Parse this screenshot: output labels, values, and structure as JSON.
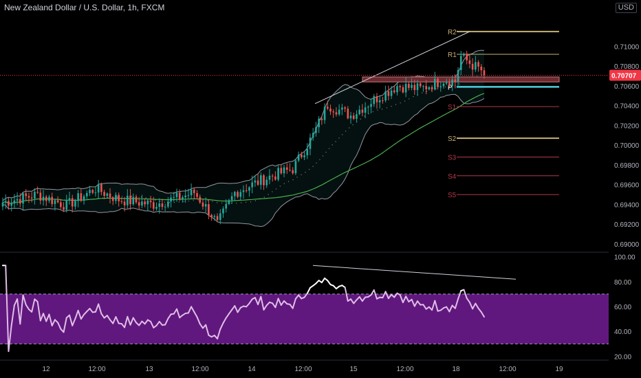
{
  "header": {
    "symbol_title": "New Zealand Dollar / U.S. Dollar, 1h, FXCM"
  },
  "currency_badge": "USD",
  "colors": {
    "background": "#000000",
    "bull": "#26a69a",
    "bear": "#ef5350",
    "bb": "#9598a1",
    "ma": "#4caf50",
    "rsi_line": "#e1bee7",
    "rsi_line_over": "#ffffff",
    "rsi_band": "#7b1fa2",
    "price_label": "#f23645",
    "pivot_p": "#4dd0e1",
    "pivot_r": "#c8b27a",
    "pivot_s": "#b23a4a"
  },
  "chart_data": {
    "type": "candlestick",
    "title": "New Zealand Dollar / U.S. Dollar, 1h, FXCM",
    "price_axis": {
      "range": [
        0.6893,
        0.7133
      ],
      "ticks": [
        "0.69000",
        "0.69200",
        "0.69400",
        "0.69600",
        "0.69800",
        "0.70000",
        "0.70200",
        "0.70400",
        "0.70600",
        "0.70800",
        "0.71000"
      ],
      "current_price_label": "0.70707",
      "current_price": 0.70707
    },
    "time_axis": {
      "labels": [
        "12",
        "12:00",
        "13",
        "12:00",
        "14",
        "12:00",
        "15",
        "12:00",
        "18",
        "12:00",
        "19"
      ]
    },
    "pivots": [
      {
        "name": "R2",
        "value": 0.7115
      },
      {
        "name": "R1",
        "value": 0.7092
      },
      {
        "name": "P",
        "value": 0.7059
      },
      {
        "name": "S1",
        "value": 0.7039
      },
      {
        "name": "S2",
        "value": 0.7007
      },
      {
        "name": "S3",
        "value": 0.6988
      },
      {
        "name": "S4",
        "value": 0.6969
      },
      {
        "name": "S5",
        "value": 0.695
      }
    ],
    "resistance_zone": [
      0.7064,
      0.7069
    ],
    "rsi": {
      "axis_ticks": [
        "100.00",
        "80.00",
        "60.00",
        "40.00",
        "20.00"
      ],
      "range": [
        18,
        102
      ],
      "band": [
        30,
        70
      ]
    }
  }
}
